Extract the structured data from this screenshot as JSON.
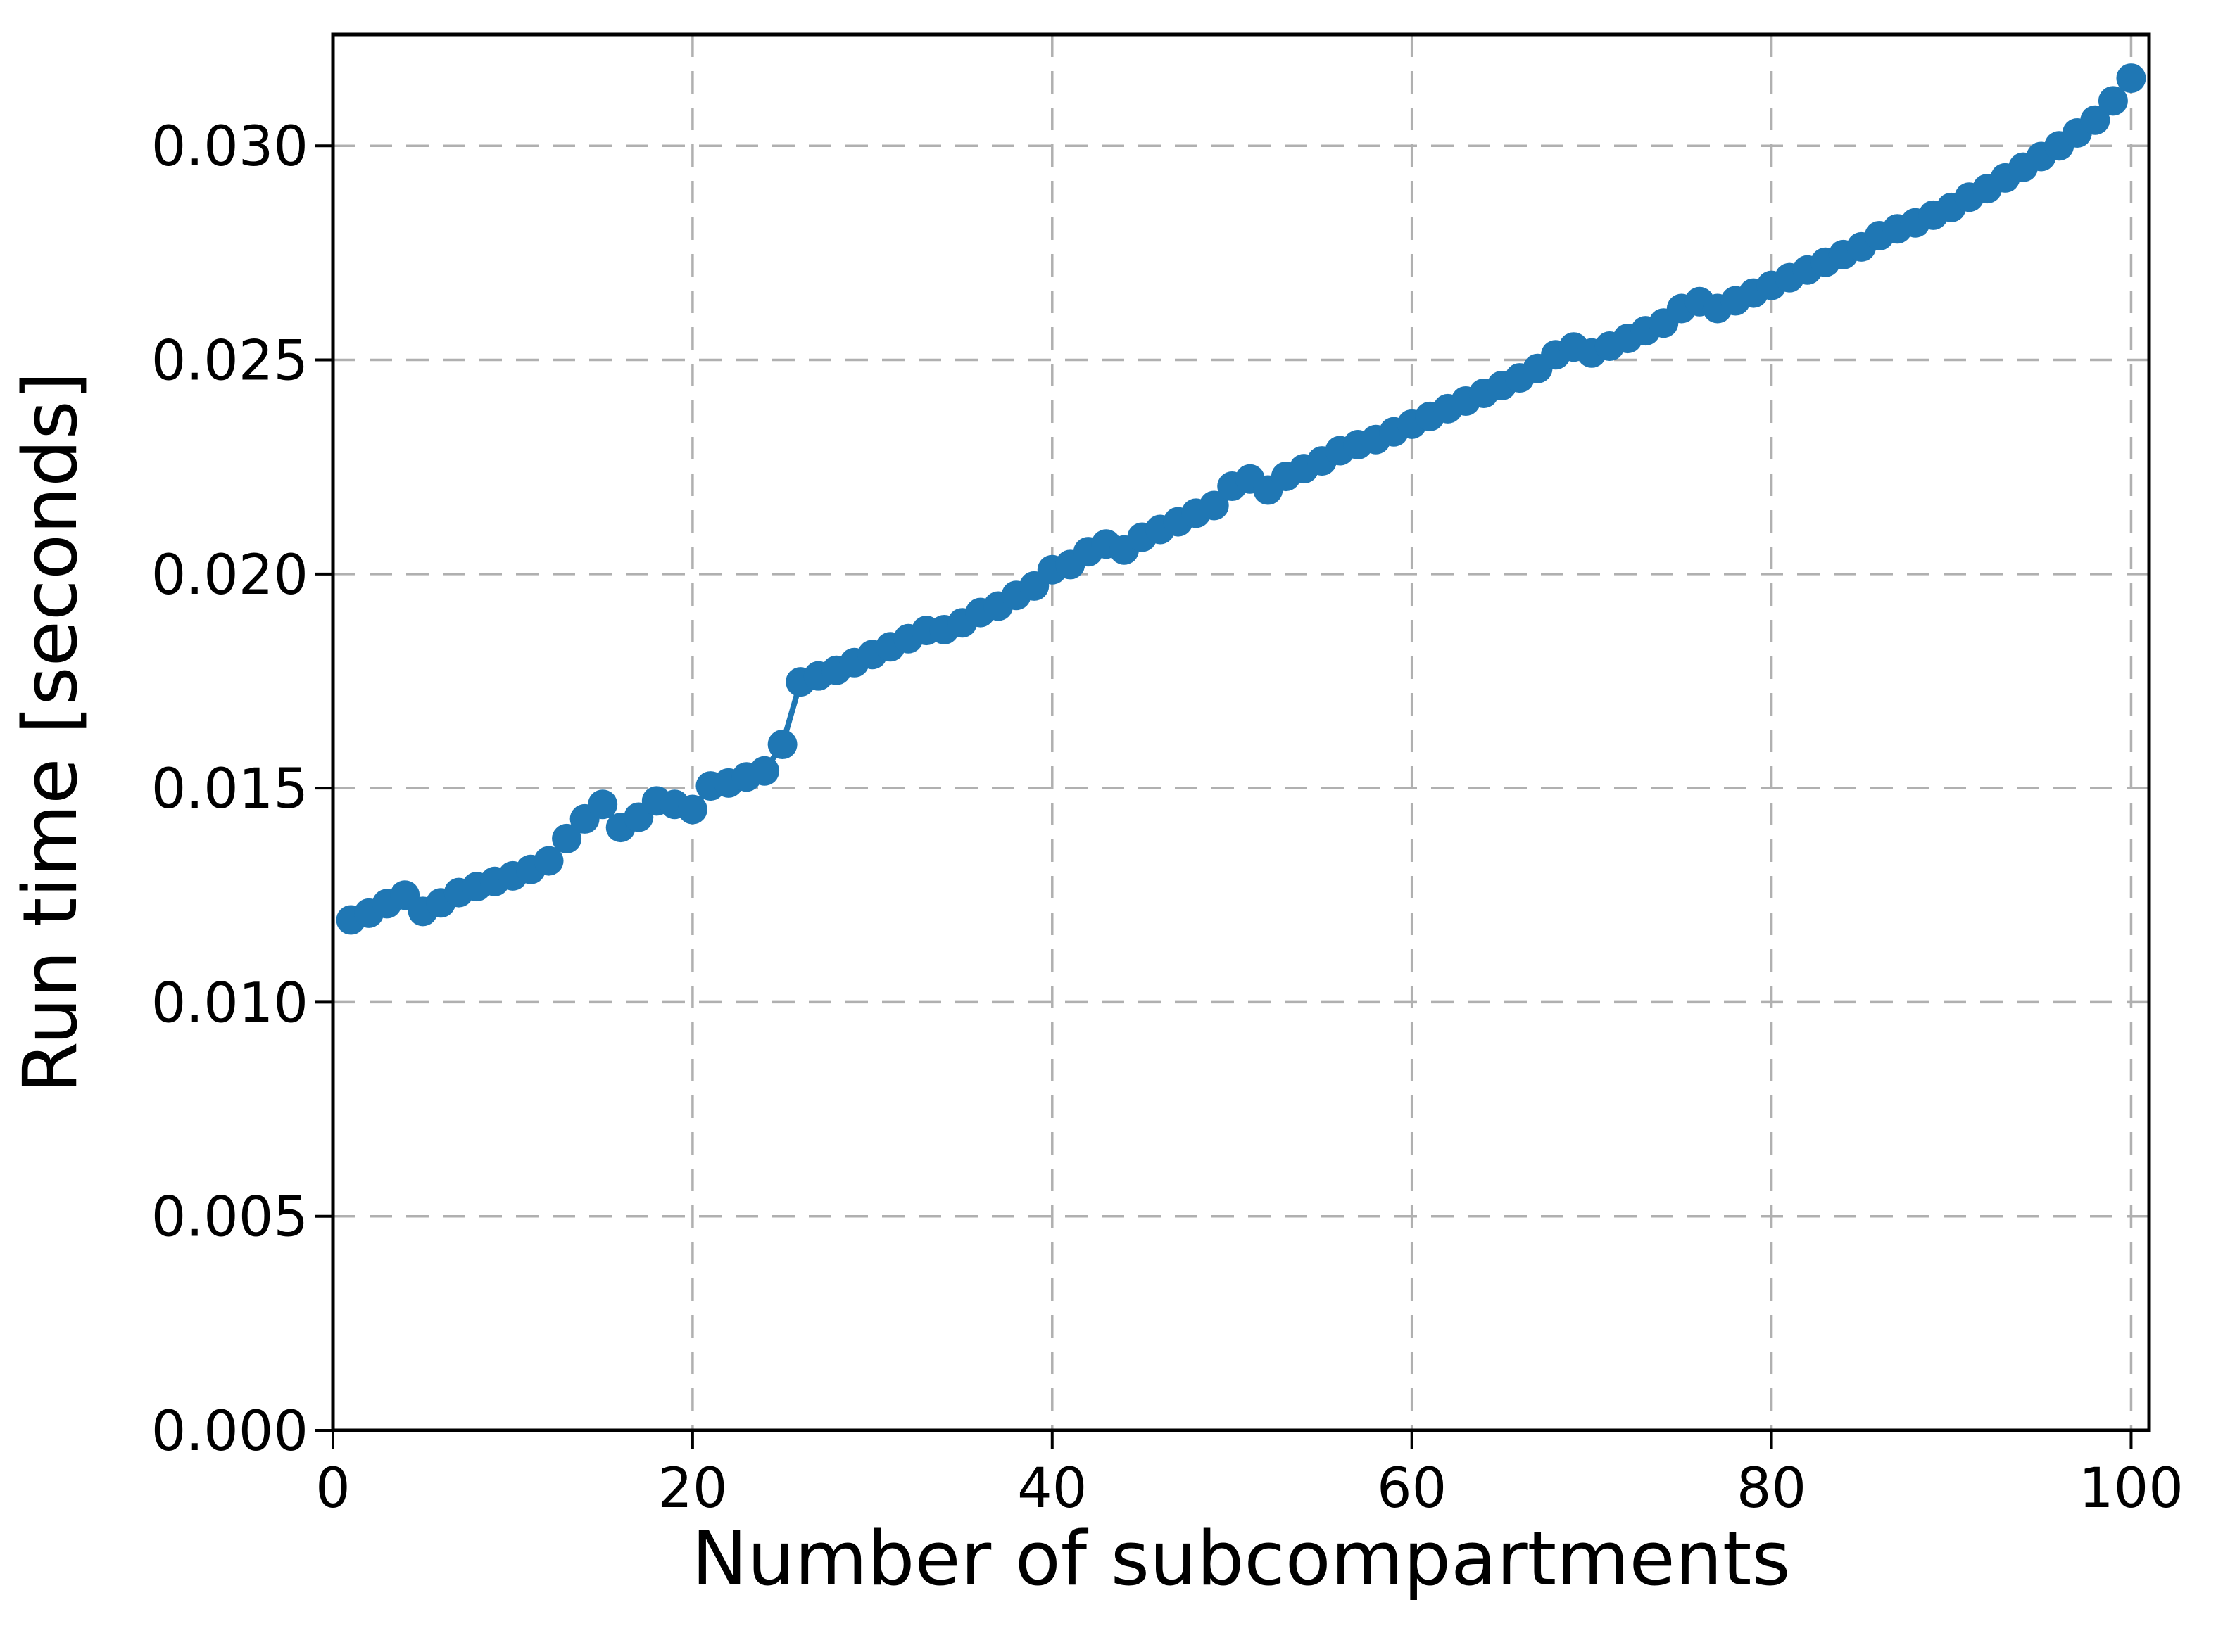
{
  "figure": {
    "background_color": "#ffffff",
    "spine_color": "#000000",
    "grid_color": "#b0b0b0"
  },
  "chart_data": {
    "type": "line",
    "title": "",
    "xlabel": "Number of subcompartments",
    "ylabel": "Run time [seconds]",
    "legend": null,
    "grid": "dashed",
    "legend_position": "none",
    "marker": "circle",
    "marker_color": "#1f77b4",
    "line_color": "#1f77b4",
    "xlim": [
      0,
      101
    ],
    "ylim": [
      0,
      0.0326
    ],
    "x_tick_labels": [
      "0",
      "20",
      "40",
      "60",
      "80",
      "100"
    ],
    "x_tick_values": [
      0,
      20,
      40,
      60,
      80,
      100
    ],
    "y_tick_labels": [
      "0.000",
      "0.005",
      "0.010",
      "0.015",
      "0.020",
      "0.025",
      "0.030"
    ],
    "y_tick_values": [
      0.0,
      0.005,
      0.01,
      0.015,
      0.02,
      0.025,
      0.03
    ],
    "x": [
      1,
      2,
      3,
      4,
      5,
      6,
      7,
      8,
      9,
      10,
      11,
      12,
      13,
      14,
      15,
      16,
      17,
      18,
      19,
      20,
      21,
      22,
      23,
      24,
      25,
      26,
      27,
      28,
      29,
      30,
      31,
      32,
      33,
      34,
      35,
      36,
      37,
      38,
      39,
      40,
      41,
      42,
      43,
      44,
      45,
      46,
      47,
      48,
      49,
      50,
      51,
      52,
      53,
      54,
      55,
      56,
      57,
      58,
      59,
      60,
      61,
      62,
      63,
      64,
      65,
      66,
      67,
      68,
      69,
      70,
      71,
      72,
      73,
      74,
      75,
      76,
      77,
      78,
      79,
      80,
      81,
      82,
      83,
      84,
      85,
      86,
      87,
      88,
      89,
      90,
      91,
      92,
      93,
      94,
      95,
      96,
      97,
      98,
      99,
      100
    ],
    "values": [
      0.01192,
      0.01208,
      0.0123,
      0.0125,
      0.01212,
      0.01232,
      0.01256,
      0.0127,
      0.01282,
      0.01295,
      0.0131,
      0.0133,
      0.01382,
      0.01428,
      0.01462,
      0.01408,
      0.01432,
      0.0147,
      0.01462,
      0.0145,
      0.01505,
      0.01512,
      0.01526,
      0.0154,
      0.01602,
      0.01748,
      0.01762,
      0.01775,
      0.01793,
      0.01812,
      0.0183,
      0.01849,
      0.01868,
      0.0187,
      0.01886,
      0.0191,
      0.01925,
      0.0195,
      0.01972,
      0.0201,
      0.02022,
      0.02052,
      0.0207,
      0.02056,
      0.02086,
      0.02104,
      0.02122,
      0.02142,
      0.0216,
      0.02205,
      0.02222,
      0.02196,
      0.02228,
      0.02246,
      0.02264,
      0.02288,
      0.02302,
      0.02314,
      0.02332,
      0.0235,
      0.02368,
      0.02386,
      0.02404,
      0.02422,
      0.0244,
      0.02458,
      0.0248,
      0.02512,
      0.0253,
      0.02516,
      0.02532,
      0.0255,
      0.02568,
      0.02586,
      0.0262,
      0.02636,
      0.0262,
      0.02638,
      0.02656,
      0.02674,
      0.02692,
      0.0271,
      0.02728,
      0.02746,
      0.02764,
      0.0279,
      0.02806,
      0.0282,
      0.02838,
      0.02856,
      0.0288,
      0.029,
      0.02925,
      0.0295,
      0.02975,
      0.03,
      0.0303,
      0.0306,
      0.03105,
      0.03158
    ]
  }
}
